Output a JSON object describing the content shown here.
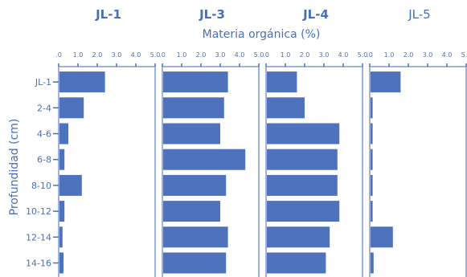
{
  "chart_data": {
    "type": "bar",
    "orientation": "horizontal",
    "xlabel": "Materia orgánica (%)",
    "ylabel": "Profundidad (cm)",
    "categories": [
      "JL-1",
      "2-4",
      "4-6",
      "6-8",
      "8-10",
      "10-12",
      "12-14",
      "14-16"
    ],
    "xticks": [
      ".0",
      "1.0",
      "2.0",
      "3.0",
      "4.0",
      "5.0"
    ],
    "xlim": [
      0,
      5
    ],
    "colors": {
      "bar": "#4f72bd",
      "frame": "#9db2dc",
      "text": "#4a6fb5"
    },
    "panels": [
      {
        "title": "JL-1",
        "title_bold": true,
        "values": [
          2.4,
          1.3,
          0.5,
          0.3,
          1.2,
          0.3,
          0.2,
          0.25
        ]
      },
      {
        "title": "JL-3",
        "title_bold": true,
        "values": [
          3.4,
          3.2,
          3.0,
          4.3,
          3.3,
          3.0,
          3.4,
          3.3
        ]
      },
      {
        "title": "JL-4",
        "title_bold": true,
        "values": [
          1.6,
          2.0,
          3.8,
          3.7,
          3.7,
          3.8,
          3.3,
          3.1
        ]
      },
      {
        "title": "JL-5",
        "title_bold": false,
        "values": [
          1.6,
          0.15,
          0.15,
          0.15,
          0.15,
          0.15,
          1.2,
          0.2
        ]
      }
    ]
  }
}
